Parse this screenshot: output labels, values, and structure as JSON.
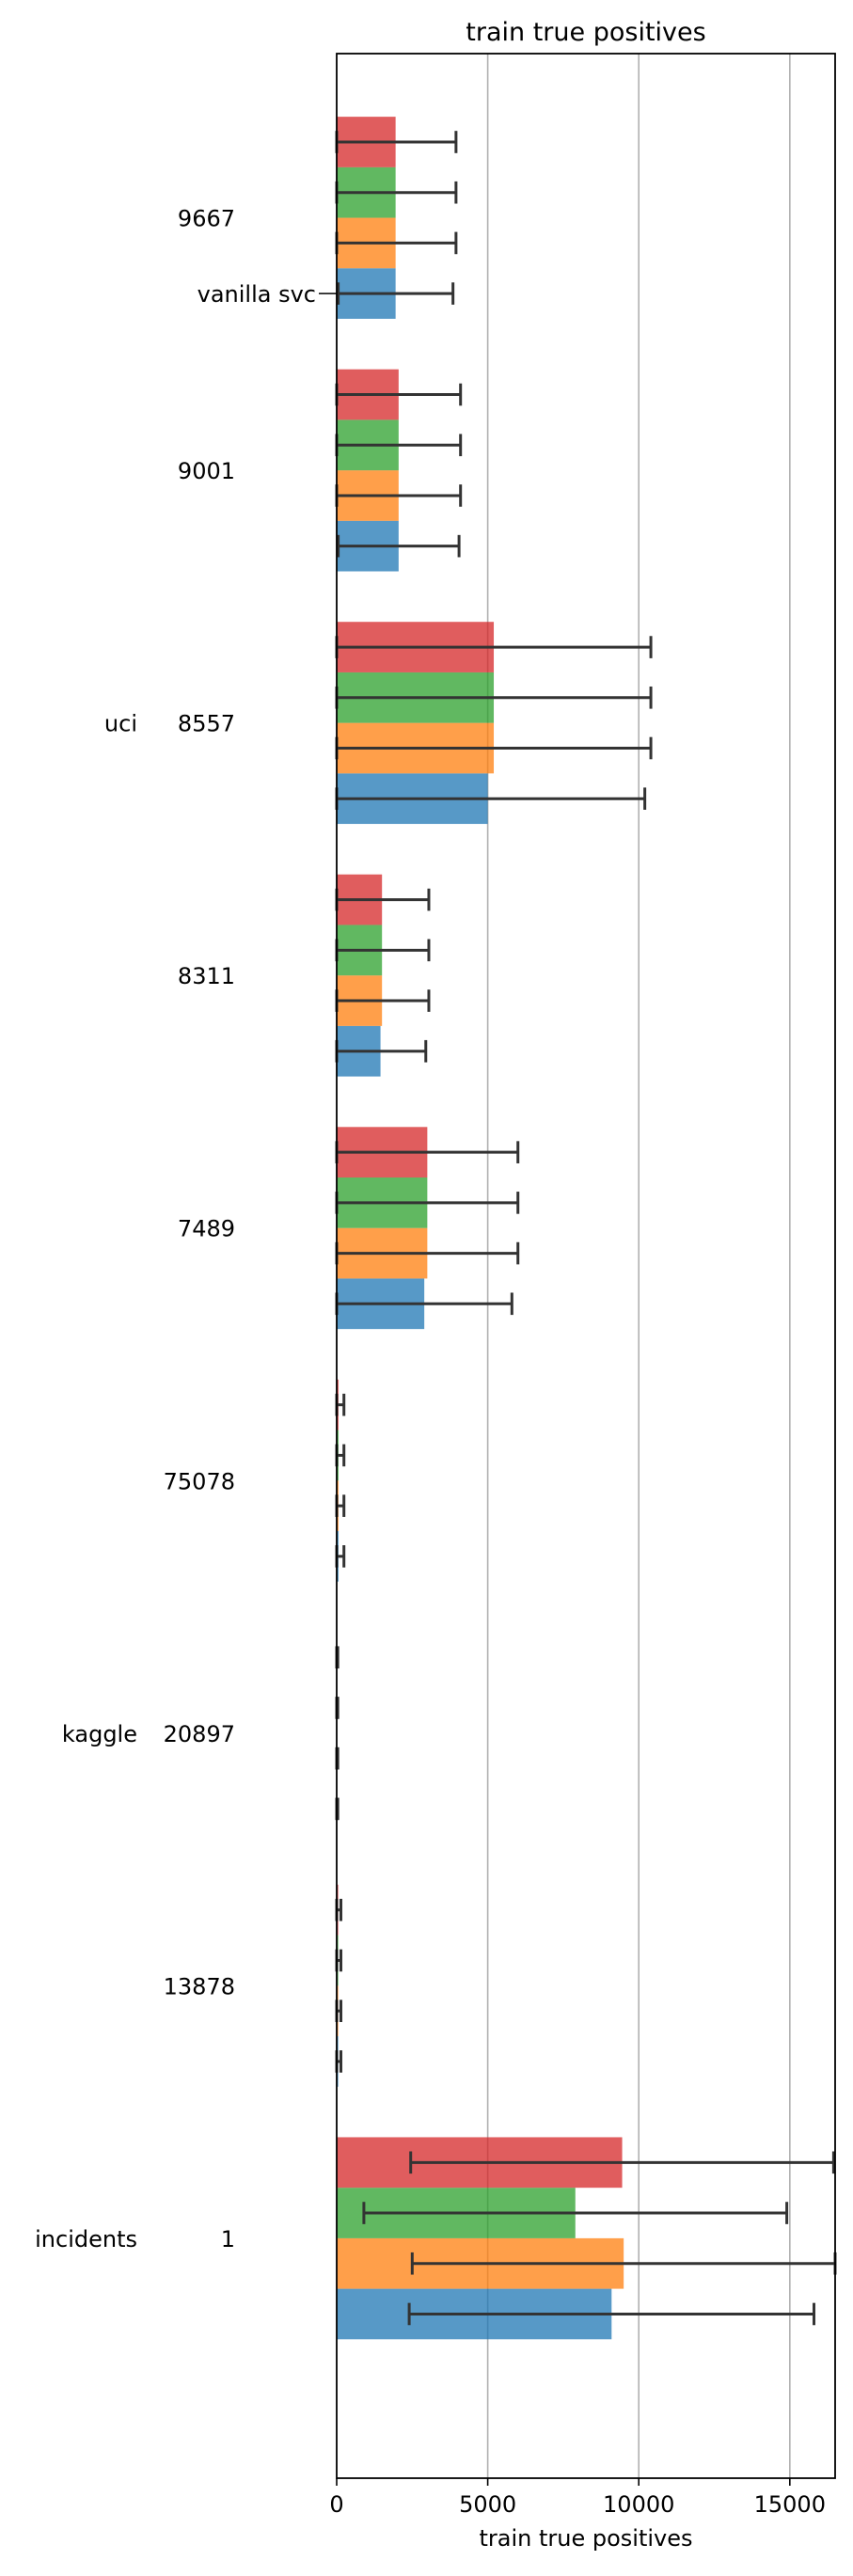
{
  "chart_data": {
    "type": "bar",
    "orientation": "horizontal",
    "title": "train true positives",
    "xlabel": "train true positives",
    "ylabel": "",
    "xlim": [
      0,
      16500
    ],
    "xticks": [
      0,
      5000,
      10000,
      15000
    ],
    "grid": "x",
    "legend": "none",
    "colors": [
      "#1f77b4",
      "#ff7f0e",
      "#2ca02c",
      "#d62728"
    ],
    "group_labels": [
      {
        "top": "vanilla svc",
        "name": "9667",
        "source": ""
      },
      {
        "name": "9001",
        "source": ""
      },
      {
        "name": "8557",
        "source": "uci"
      },
      {
        "name": "8311",
        "source": ""
      },
      {
        "name": "7489",
        "source": ""
      },
      {
        "name": "75078",
        "source": ""
      },
      {
        "name": "20897",
        "source": "kaggle"
      },
      {
        "name": "13878",
        "source": ""
      },
      {
        "name": "1",
        "source": "incidents"
      }
    ],
    "series": [
      {
        "values": [
          1950,
          2050,
          5000,
          1450,
          2900,
          60,
          12,
          50,
          9100
        ],
        "errors": [
          1900,
          2000,
          5200,
          1500,
          2900,
          180,
          25,
          90,
          6700
        ]
      },
      {
        "values": [
          1950,
          2050,
          5200,
          1500,
          3000,
          60,
          12,
          50,
          9500
        ],
        "errors": [
          2000,
          2050,
          5200,
          1550,
          3000,
          180,
          25,
          90,
          7000
        ]
      },
      {
        "values": [
          1950,
          2050,
          5200,
          1500,
          3000,
          60,
          12,
          50,
          7900
        ],
        "errors": [
          2000,
          2050,
          5200,
          1550,
          3000,
          180,
          25,
          90,
          7000
        ]
      },
      {
        "values": [
          1950,
          2050,
          5200,
          1500,
          3000,
          60,
          12,
          50,
          9450
        ],
        "errors": [
          2000,
          2050,
          5200,
          1550,
          3000,
          180,
          25,
          90,
          7000
        ]
      }
    ]
  }
}
